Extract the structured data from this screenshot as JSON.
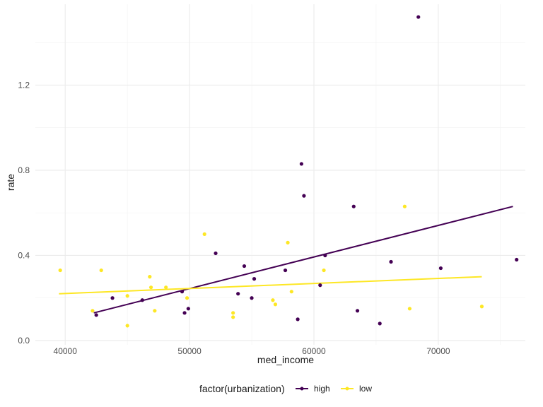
{
  "chart_data": {
    "type": "scatter",
    "xlabel": "med_income",
    "ylabel": "rate",
    "xlim": [
      37600,
      77000
    ],
    "ylim": [
      -0.02,
      1.58
    ],
    "x_ticks": [
      40000,
      50000,
      60000,
      70000
    ],
    "x_tick_labels": [
      "40000",
      "50000",
      "60000",
      "70000"
    ],
    "y_ticks": [
      0.0,
      0.4,
      0.8,
      1.2
    ],
    "y_tick_labels": [
      "0.0",
      "0.4",
      "0.8",
      "1.2"
    ],
    "grid": true,
    "legend": {
      "title": "factor(urbanization)",
      "position": "bottom",
      "entries": [
        "high",
        "low"
      ]
    },
    "series": [
      {
        "name": "high",
        "color": "#440154",
        "points": [
          [
            42500,
            0.12
          ],
          [
            43800,
            0.2
          ],
          [
            46200,
            0.19
          ],
          [
            49400,
            0.23
          ],
          [
            49600,
            0.13
          ],
          [
            49900,
            0.15
          ],
          [
            52100,
            0.41
          ],
          [
            53900,
            0.22
          ],
          [
            54400,
            0.35
          ],
          [
            55000,
            0.2
          ],
          [
            55200,
            0.29
          ],
          [
            57700,
            0.33
          ],
          [
            58700,
            0.1
          ],
          [
            59000,
            0.83
          ],
          [
            59200,
            0.68
          ],
          [
            60500,
            0.26
          ],
          [
            60900,
            0.4
          ],
          [
            63200,
            0.63
          ],
          [
            63500,
            0.14
          ],
          [
            65300,
            0.08
          ],
          [
            66200,
            0.37
          ],
          [
            68400,
            1.52
          ],
          [
            70200,
            0.34
          ],
          [
            76300,
            0.38
          ]
        ],
        "fit": {
          "x": [
            42300,
            76000
          ],
          "y": [
            0.13,
            0.63
          ]
        }
      },
      {
        "name": "low",
        "color": "#FDE725",
        "points": [
          [
            39600,
            0.33
          ],
          [
            42200,
            0.14
          ],
          [
            42900,
            0.33
          ],
          [
            45000,
            0.07
          ],
          [
            45000,
            0.21
          ],
          [
            46800,
            0.3
          ],
          [
            46900,
            0.25
          ],
          [
            47200,
            0.14
          ],
          [
            48100,
            0.25
          ],
          [
            49800,
            0.2
          ],
          [
            51200,
            0.5
          ],
          [
            53500,
            0.13
          ],
          [
            53500,
            0.11
          ],
          [
            56700,
            0.19
          ],
          [
            56900,
            0.17
          ],
          [
            57900,
            0.46
          ],
          [
            58200,
            0.23
          ],
          [
            60800,
            0.33
          ],
          [
            67300,
            0.63
          ],
          [
            67700,
            0.15
          ],
          [
            73500,
            0.16
          ]
        ],
        "fit": {
          "x": [
            39500,
            73500
          ],
          "y": [
            0.22,
            0.3
          ]
        }
      }
    ]
  }
}
